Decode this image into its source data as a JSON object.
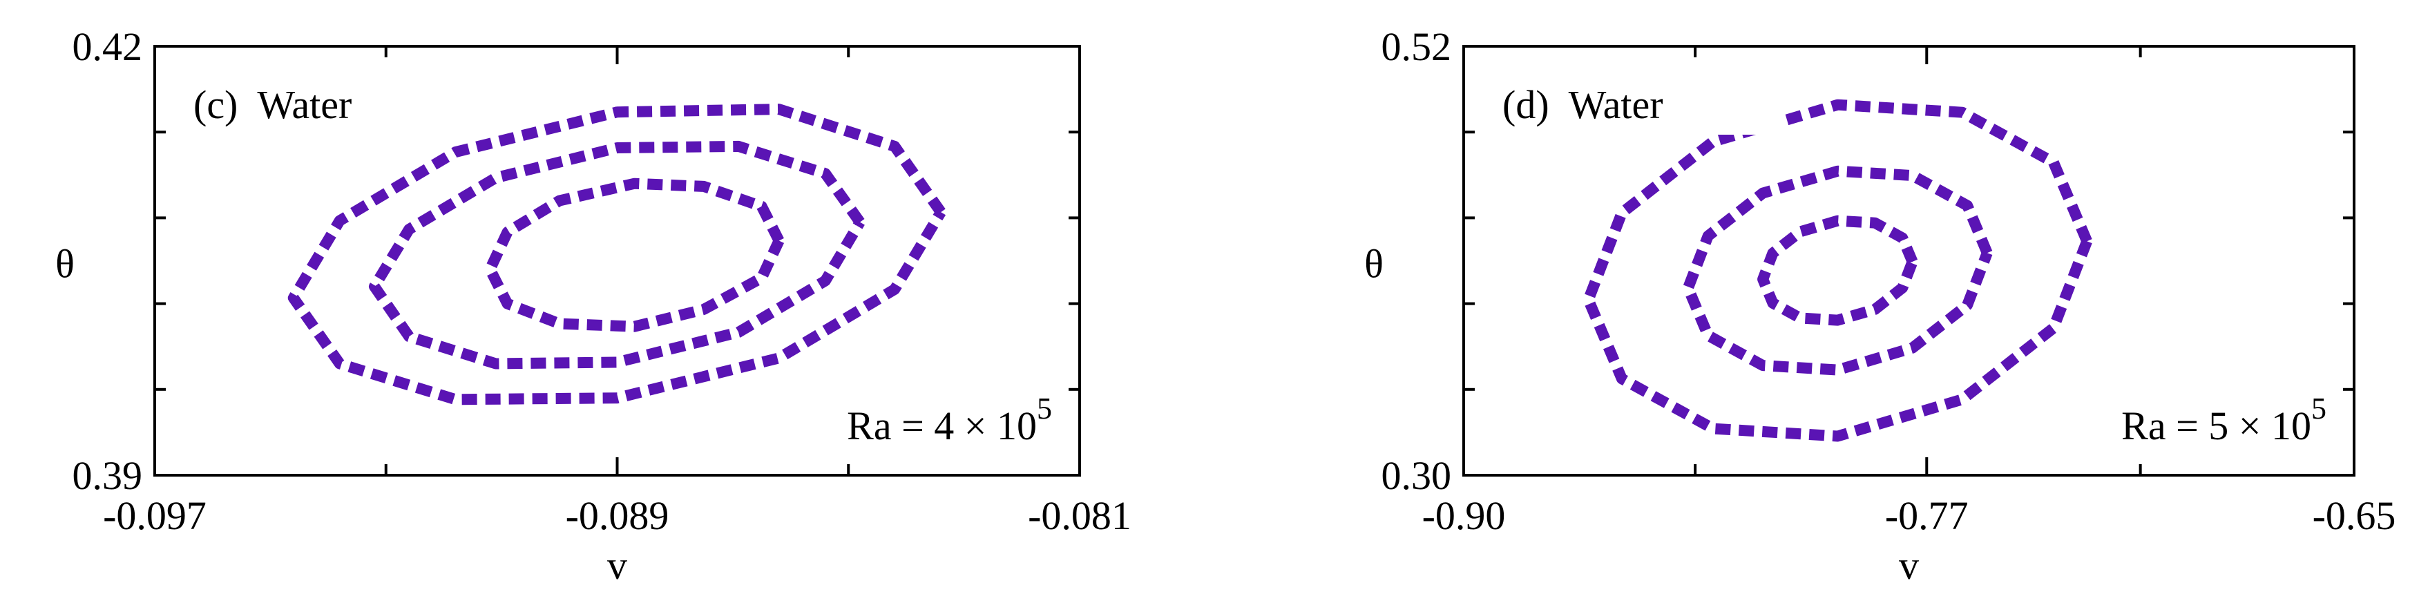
{
  "chart_data": [
    {
      "type": "line",
      "panel_label": "(c)  Water",
      "annotation": {
        "text": "Ra = 4 × 10",
        "superscript": "5"
      },
      "xlabel": "v",
      "ylabel": "θ",
      "color": "#5a14b4",
      "xlim": [
        -0.097,
        -0.081
      ],
      "xticks": [
        -0.097,
        -0.089,
        -0.081
      ],
      "xminorticks": [
        -0.093,
        -0.085
      ],
      "ylim": [
        0.39,
        0.42
      ],
      "yticks": [
        0.39,
        0.42
      ],
      "yminorticks": [
        0.396,
        0.402,
        0.408,
        0.414
      ],
      "series": [
        {
          "x": [
            -0.0834,
            -0.0842,
            -0.0862,
            -0.089,
            -0.0918,
            -0.0938,
            -0.0946,
            -0.0938,
            -0.0918,
            -0.089,
            -0.0862,
            -0.0842,
            -0.0834
          ],
          "values": [
            0.4084,
            0.413,
            0.4156,
            0.4154,
            0.4126,
            0.4078,
            0.4024,
            0.3978,
            0.3953,
            0.3954,
            0.3982,
            0.403,
            0.4084
          ]
        },
        {
          "x": [
            -0.0848,
            -0.0854,
            -0.0869,
            -0.089,
            -0.0911,
            -0.0926,
            -0.0932,
            -0.0926,
            -0.0911,
            -0.089,
            -0.0869,
            -0.0854,
            -0.0848
          ],
          "values": [
            0.4077,
            0.4111,
            0.413,
            0.4129,
            0.4108,
            0.4072,
            0.4032,
            0.3997,
            0.3978,
            0.3979,
            0.4,
            0.4036,
            0.4077
          ]
        },
        {
          "x": [
            -0.0862,
            -0.0865,
            -0.0875,
            -0.0887,
            -0.09,
            -0.0909,
            -0.0912,
            -0.0909,
            -0.09,
            -0.0887,
            -0.0875,
            -0.0865,
            -0.0862
          ],
          "values": [
            0.4064,
            0.4088,
            0.4102,
            0.4104,
            0.4092,
            0.407,
            0.4044,
            0.402,
            0.4006,
            0.4004,
            0.4016,
            0.4038,
            0.4064
          ]
        }
      ]
    },
    {
      "type": "line",
      "panel_label": "(d)  Water",
      "annotation": {
        "text": "Ra = 5 × 10",
        "superscript": "5"
      },
      "xlabel": "v",
      "ylabel": "θ",
      "color": "#5a14b4",
      "xlim": [
        -0.9,
        -0.65
      ],
      "xticks": [
        {
          "value": -0.9,
          "label": "-0.90"
        },
        -0.77,
        -0.65
      ],
      "xminorticks": [
        -0.835,
        -0.71
      ],
      "ylim": [
        0.3,
        0.52
      ],
      "yticks": [
        {
          "value": 0.3,
          "label": "0.30"
        },
        0.52
      ],
      "yminorticks": [
        0.344,
        0.388,
        0.432,
        0.476
      ],
      "series": [
        {
          "x": [
            -0.725,
            -0.7344,
            -0.76,
            -0.795,
            -0.83,
            -0.8556,
            -0.865,
            -0.8556,
            -0.83,
            -0.795,
            -0.76,
            -0.7344,
            -0.725
          ],
          "values": [
            0.42,
            0.4605,
            0.4861,
            0.49,
            0.4711,
            0.4345,
            0.39,
            0.3495,
            0.3239,
            0.32,
            0.3389,
            0.3755,
            0.42
          ]
        },
        {
          "x": [
            -0.753,
            -0.7586,
            -0.774,
            -0.795,
            -0.816,
            -0.8314,
            -0.837,
            -0.8314,
            -0.816,
            -0.795,
            -0.774,
            -0.7586,
            -0.753
          ],
          "values": [
            0.414,
            0.4383,
            0.4537,
            0.456,
            0.4447,
            0.4227,
            0.396,
            0.3717,
            0.3563,
            0.354,
            0.3653,
            0.3873,
            0.414
          ]
        },
        {
          "x": [
            -0.774,
            -0.7768,
            -0.7845,
            -0.795,
            -0.8055,
            -0.8132,
            -0.816,
            -0.8132,
            -0.8055,
            -0.795,
            -0.7845,
            -0.7768,
            -0.774
          ],
          "values": [
            0.4095,
            0.4217,
            0.4294,
            0.4305,
            0.4249,
            0.4139,
            0.4005,
            0.3883,
            0.3806,
            0.3795,
            0.3851,
            0.3961,
            0.4095
          ]
        }
      ]
    }
  ]
}
